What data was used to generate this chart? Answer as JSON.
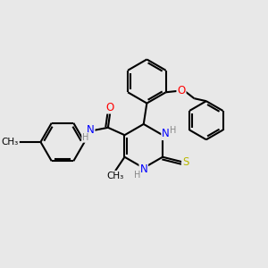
{
  "bg_color": "#e8e8e8",
  "bond_color": "#000000",
  "bond_width": 1.5,
  "atom_colors": {
    "N": "#0000ff",
    "O": "#ff0000",
    "S": "#b8b800",
    "C": "#000000",
    "H": "#888888"
  },
  "font_size": 8.5,
  "figsize": [
    3.0,
    3.0
  ],
  "dpi": 100
}
